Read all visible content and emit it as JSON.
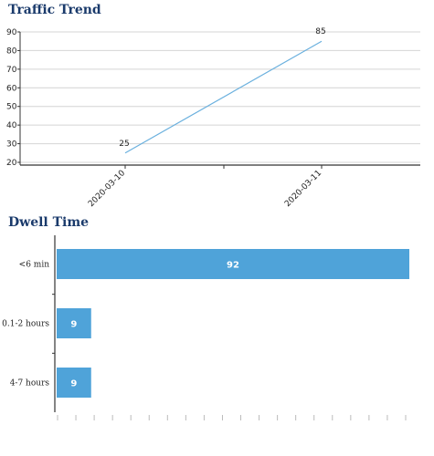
{
  "chart_data": [
    {
      "type": "line",
      "title": "Traffic Trend",
      "x": [
        "2020-03-10",
        "2020-03-11"
      ],
      "series": [
        {
          "values": [
            25,
            85
          ]
        }
      ],
      "ylim": [
        20,
        90
      ],
      "yticks": [
        20,
        30,
        40,
        50,
        60,
        70,
        80,
        90
      ],
      "grid": true,
      "color": "#6ab0de"
    },
    {
      "type": "bar",
      "orientation": "horizontal",
      "title": "Dwell Time",
      "categories": [
        "<6 min",
        "0.1-2 hours",
        "4-7 hours"
      ],
      "values": [
        92,
        9,
        9
      ],
      "xlim": [
        0,
        92
      ],
      "color": "#4fa3d9"
    }
  ]
}
